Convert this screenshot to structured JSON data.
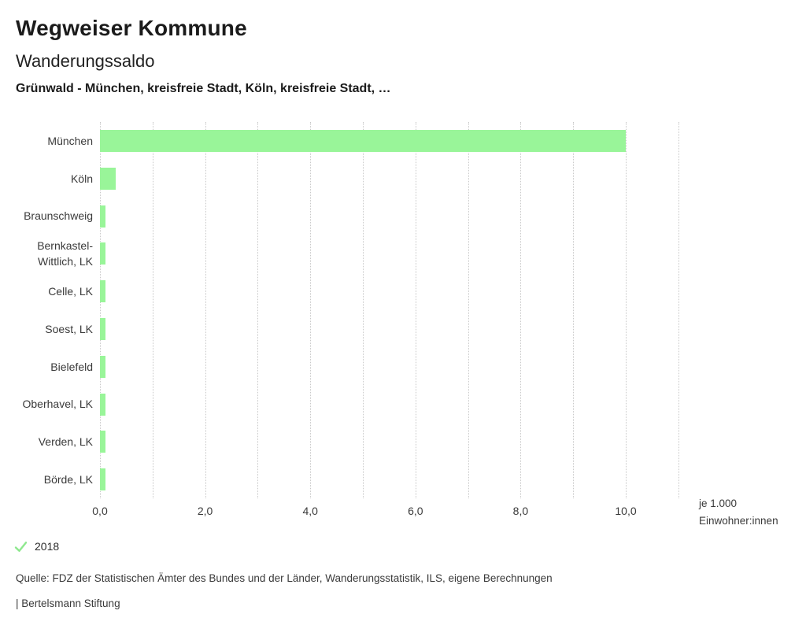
{
  "header": {
    "title": "Wegweiser Kommune",
    "indicator": "Wanderungssaldo",
    "selection": "Grünwald - München, kreisfreie Stadt, Köln, kreisfreie Stadt, …"
  },
  "chart_data": {
    "type": "bar",
    "orientation": "horizontal",
    "categories": [
      "München",
      "Köln",
      "Braunschweig",
      "Bernkastel-\nWittlich, LK",
      "Celle, LK",
      "Soest, LK",
      "Bielefeld",
      "Oberhavel, LK",
      "Verden, LK",
      "Börde, LK"
    ],
    "series": [
      {
        "name": "2018",
        "values": [
          10.0,
          0.3,
          0.1,
          0.1,
          0.1,
          0.1,
          0.1,
          0.1,
          0.1,
          0.1
        ]
      }
    ],
    "xlim": [
      0,
      11
    ],
    "grid_interval": 1,
    "grid": true,
    "x_ticks": [
      {
        "value": 0,
        "label": "0,0"
      },
      {
        "value": 2,
        "label": "2,0"
      },
      {
        "value": 4,
        "label": "4,0"
      },
      {
        "value": 6,
        "label": "6,0"
      },
      {
        "value": 8,
        "label": "8,0"
      },
      {
        "value": 10,
        "label": "10,0"
      }
    ],
    "unit_label": [
      "je 1.000",
      "Einwohner:innen"
    ],
    "bar_color": "#99f599",
    "gridline_color": "#c9c9c9",
    "legend_position": "bottom-left"
  },
  "legend": {
    "year": "2018",
    "check_color": "#8ee88e"
  },
  "footer": {
    "source": "Quelle: FDZ der Statistischen Ämter des Bundes und der Länder, Wanderungsstatistik, ILS, eigene Berechnungen",
    "branding": "| Bertelsmann Stiftung"
  }
}
